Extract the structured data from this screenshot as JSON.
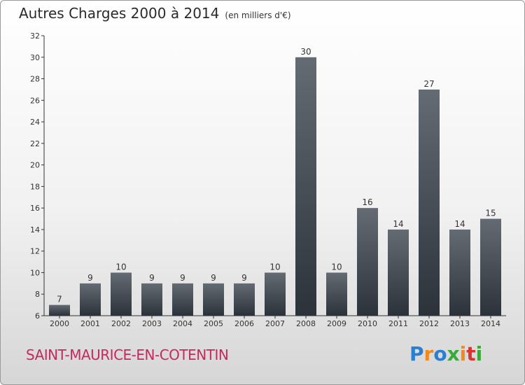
{
  "title": "Autres Charges 2000 à 2014",
  "subtitle": "(en milliers d'€)",
  "city": "SAINT-MAURICE-EN-COTENTIN",
  "logo": {
    "letters": [
      "P",
      "r",
      "o",
      "x",
      "i",
      "t",
      "i"
    ],
    "colors": [
      "#2a7fd0",
      "#f08a1c",
      "#2a7fd0",
      "#3aa83a",
      "#f08a1c",
      "#e0322c",
      "#3aa83a"
    ]
  },
  "colors": {
    "bar_dark": "#2c3239",
    "bar_light": "#646b73"
  },
  "chart_data": {
    "type": "bar",
    "categories": [
      "2000",
      "2001",
      "2002",
      "2003",
      "2004",
      "2005",
      "2006",
      "2007",
      "2008",
      "2009",
      "2010",
      "2011",
      "2012",
      "2013",
      "2014"
    ],
    "values": [
      7,
      9,
      10,
      9,
      9,
      9,
      9,
      10,
      30,
      10,
      16,
      14,
      27,
      14,
      15
    ],
    "ylim": [
      6,
      32
    ],
    "yticks": [
      6,
      8,
      10,
      12,
      14,
      16,
      18,
      20,
      22,
      24,
      26,
      28,
      30,
      32
    ],
    "grid": false,
    "data_labels": true
  }
}
